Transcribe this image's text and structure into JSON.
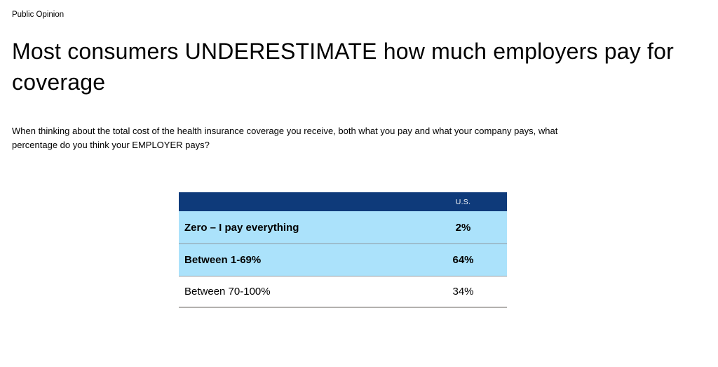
{
  "page": {
    "eyebrow": "Public Opinion",
    "title": "Most consumers UNDERESTIMATE how much employers pay for coverage",
    "question": "When thinking about the total cost of the health insurance coverage you receive, both what you pay and what your company pays, what percentage do you think your EMPLOYER pays?"
  },
  "table": {
    "column_header": "U.S.",
    "rows": [
      {
        "label": "Zero – I pay everything",
        "value": "2%",
        "highlighted": true
      },
      {
        "label": "Between 1-69%",
        "value": "64%",
        "highlighted": true
      },
      {
        "label": "Between 70-100%",
        "value": "34%",
        "highlighted": false
      }
    ]
  },
  "colors": {
    "header_bg": "#0e3a7a",
    "header_text": "#ffffff",
    "highlight_row_bg": "#abe2fb",
    "row_separator": "#8f9aa2",
    "table_bottom_border": "#b3b1ae",
    "text": "#000000",
    "background": "#ffffff"
  },
  "chart_data": {
    "type": "table",
    "title": "Most consumers UNDERESTIMATE how much employers pay for coverage",
    "columns": [
      "",
      "U.S."
    ],
    "categories": [
      "Zero – I pay everything",
      "Between 1-69%",
      "Between 70-100%"
    ],
    "values": [
      2,
      64,
      34
    ],
    "value_unit": "%",
    "highlighted_categories": [
      "Zero – I pay everything",
      "Between 1-69%"
    ]
  }
}
